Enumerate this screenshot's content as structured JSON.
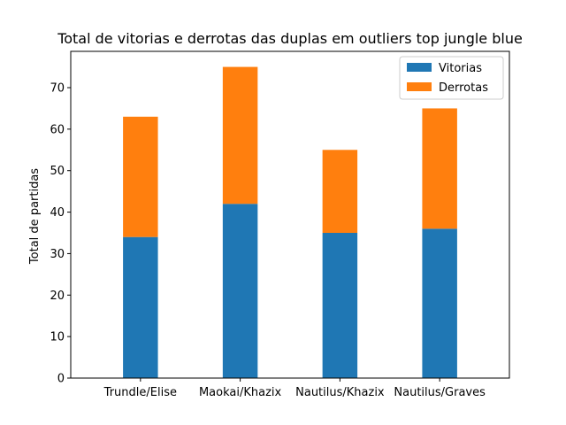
{
  "chart_data": {
    "type": "bar",
    "stacked": true,
    "title": "Total de vitorias e derrotas das duplas em outliers top jungle blue",
    "xlabel": "",
    "ylabel": "Total de partidas",
    "categories": [
      "Trundle/Elise",
      "Maokai/Khazix",
      "Nautilus/Khazix",
      "Nautilus/Graves"
    ],
    "series": [
      {
        "name": "Vitorias",
        "values": [
          34,
          42,
          35,
          36
        ],
        "color": "#1f77b4"
      },
      {
        "name": "Derrotas",
        "values": [
          29,
          33,
          20,
          29
        ],
        "color": "#ff7f0e"
      }
    ],
    "ylim": [
      0,
      78.75
    ],
    "yticks": [
      0,
      10,
      20,
      30,
      40,
      50,
      60,
      70
    ],
    "grid": false,
    "legend_position": "top-right"
  }
}
